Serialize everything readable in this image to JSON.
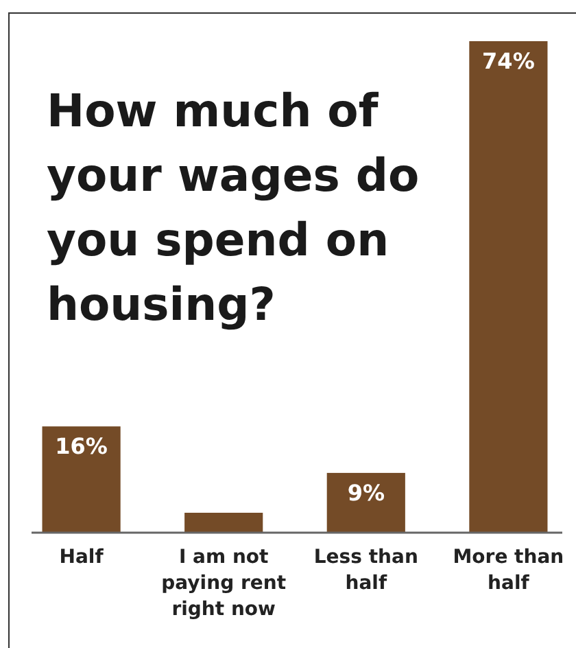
{
  "chart_data": {
    "type": "bar",
    "title": "How much of your wages do you spend on housing?",
    "categories": [
      "Half",
      "I am not paying rent right now",
      "Less than half",
      "More than half"
    ],
    "values": [
      16,
      3,
      9,
      74
    ],
    "value_labels": [
      "16%",
      null,
      "9%",
      "74%"
    ],
    "color": "#744b27",
    "ylim": [
      0,
      74
    ]
  }
}
